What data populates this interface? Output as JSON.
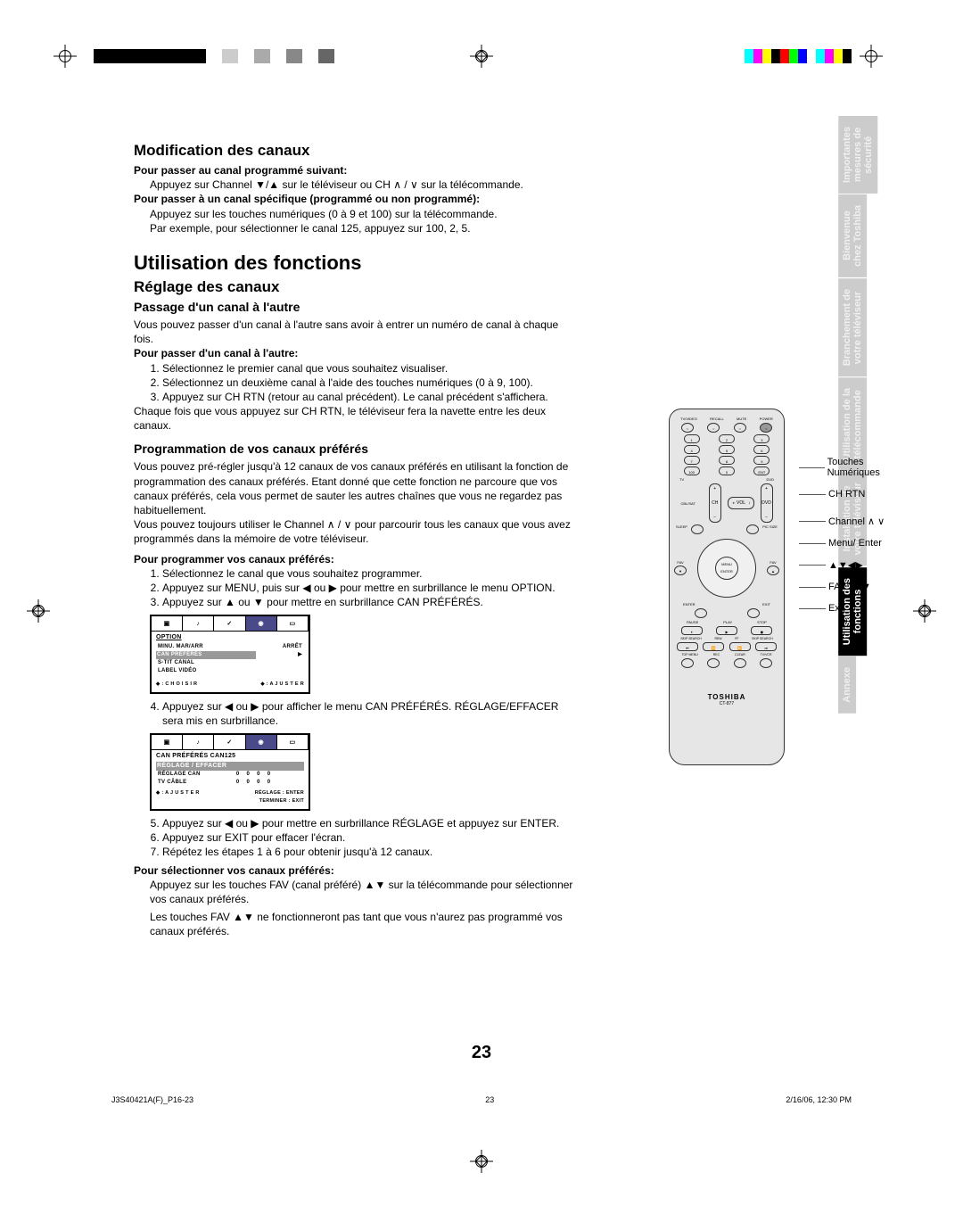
{
  "print": {
    "left_bars": [
      "#000",
      "#000",
      "#000",
      "#000",
      "#000",
      "#000",
      "#000",
      "#fff",
      "#ccc",
      "#fff",
      "#aaa",
      "#fff",
      "#888",
      "#fff",
      "#666"
    ],
    "right_bars": [
      "#00ffff",
      "#ff00ff",
      "#ffff00",
      "#000000",
      "#ff0000",
      "#00ff00",
      "#0000ff",
      "#ffffff",
      "#00ffff",
      "#ff00ff",
      "#ffff00",
      "#000000"
    ]
  },
  "h1_mod": "Modification des canaux",
  "mod": {
    "sub1_b": "Pour passer au canal programmé suivant:",
    "sub1_txt": "Appuyez sur Channel ▼/▲ sur le téléviseur ou CH ∧ / ∨  sur la télécommande.",
    "sub2_b": "Pour passer à un canal spécifique (programmé ou non programmé):",
    "sub2_txt": "Appuyez sur les touches numériques (0 à 9 et 100) sur la télécommande.",
    "sub2_ex": "Par exemple, pour sélectionner le canal 125, appuyez sur 100, 2, 5."
  },
  "h1_util": "Utilisation des fonctions",
  "h2_reg": "Réglage des canaux",
  "h3_pass": "Passage d'un canal à l'autre",
  "pass_intro": "Vous pouvez passer d'un canal à l'autre sans avoir à entrer un numéro de canal à chaque fois.",
  "pass_b": "Pour passer d'un canal à l'autre:",
  "pass_steps": [
    "Sélectionnez le premier canal que vous souhaitez visualiser.",
    "Sélectionnez un deuxième canal à l'aide des touches numériques (0 à 9, 100).",
    "Appuyez sur CH RTN (retour au canal précédent). Le canal précédent s'affichera."
  ],
  "pass_note": "Chaque fois que vous appuyez sur CH RTN, le téléviseur fera la navette entre les deux canaux.",
  "h3_prog": "Programmation de vos canaux préférés",
  "prog_p1": "Vous pouvez pré-régler jusqu'à 12 canaux de vos canaux préférés en utilisant la fonction de  programmation des canaux préférés. Etant donné que cette fonction ne parcoure que vos canaux préférés, cela vous permet de sauter les autres chaînes que vous ne regardez pas habituellement.",
  "prog_p2": "Vous pouvez toujours utiliser le Channel ∧ / ∨  pour parcourir tous les canaux que vous avez programmés dans la mémoire de votre téléviseur.",
  "prog_b": "Pour programmer vos canaux préférés:",
  "prog_steps_1": "Sélectionnez le canal que vous souhaitez programmer.",
  "prog_steps_2": "Appuyez sur MENU, puis sur ◀ ou ▶ pour mettre en surbrillance le menu OPTION.",
  "prog_steps_3": "Appuyez sur ▲ ou ▼ pour mettre en surbrillance CAN PRÉFÉRÉS.",
  "prog_steps_4": "Appuyez sur ◀ ou ▶ pour afficher le menu CAN PRÉFÉRÉS. RÉGLAGE/EFFACER sera mis en surbrillance.",
  "prog_steps_5": "Appuyez sur ◀ ou ▶ pour mettre en surbrillance RÉGLAGE et appuyez sur ENTER.",
  "prog_steps_6": "Appuyez sur EXIT pour effacer l'écran.",
  "prog_steps_7": "Répétez les étapes 1 à 6 pour obtenir jusqu'à 12 canaux.",
  "sel_b": "Pour sélectionner vos canaux préférés:",
  "sel_p1": "Appuyez sur les touches FAV (canal préféré) ▲▼ sur la télécommande pour sélectionner vos canaux préférés.",
  "sel_p2": "Les touches FAV ▲▼ ne fonctionneront pas tant que vous n'aurez pas programmé vos canaux préférés.",
  "osd1": {
    "title": "OPTION",
    "rows": [
      [
        "MINU. MAR/ARR",
        "ARRÊT"
      ],
      [
        "CAN PRÉFÉRÉS",
        "▶"
      ],
      [
        "S-TIT CANAL",
        ""
      ],
      [
        "LABEL VIDÉO",
        ""
      ]
    ],
    "foot_l": "◆ : C H O I S I R",
    "foot_r": "◆ : A J U S T E R"
  },
  "osd2": {
    "title": "CAN PRÉFÉRÉS      CAN125",
    "hl": "RÉGLAGE / EFFACER",
    "r1": "RÉGLAGE CAN",
    "r2": "TV CÂBLE",
    "cells": [
      "0",
      "0",
      "0",
      "0"
    ],
    "foot_l": "◆ : A J U S T E R",
    "foot_r1": "RÉGLAGE : ENTER",
    "foot_r2": "TERMINER : EXIT"
  },
  "callouts": {
    "c1": "Touches Numériques",
    "c2": "CH RTN",
    "c3": "Channel ∧ ∨",
    "c4": "Menu/ Enter",
    "c5": "▲▼◀▶",
    "c6": "FAV ▲ ▼",
    "c7": "Exit"
  },
  "remote": {
    "top": [
      "TV/VIDEO",
      "RECALL",
      "MUTE",
      "POWER"
    ],
    "nums": [
      [
        "1",
        "2",
        "3"
      ],
      [
        "4",
        "5",
        "6"
      ],
      [
        "7",
        "8",
        "9"
      ],
      [
        "100",
        "0",
        "ENT"
      ]
    ],
    "row_lbl": [
      "-/M",
      "",
      "CH RTN"
    ],
    "left_lbl": "TV",
    "right_lbl": "DVD",
    "crl": "CBL/SAT",
    "ch": "CH",
    "vol": "VOL",
    "sleep": "SLEEP",
    "pic": "PIC SIZE",
    "fav": "FAV",
    "menu": "MENU",
    "enter": "ENTER",
    "exit": "EXIT",
    "play_row": [
      "PAUSE",
      "PLAY",
      "STOP"
    ],
    "bot_row": [
      "SKIP SEARCH",
      "REW",
      "FF",
      "SKIP SEARCH"
    ],
    "bot2": [
      "TOP MENU",
      "REC",
      "CLEAR",
      "TV/VCR"
    ],
    "brand": "TOSHIBA",
    "model": "CT-877"
  },
  "tabs": [
    {
      "l1": "Importantes",
      "l2": "mesures de",
      "l3": "sécurité",
      "active": false
    },
    {
      "l1": "Bienvenue",
      "l2": "chez Toshiba",
      "l3": "",
      "active": false
    },
    {
      "l1": "Branchement de",
      "l2": "votre téléviseur",
      "l3": "",
      "active": false
    },
    {
      "l1": "Utilisation de la",
      "l2": "télécommande",
      "l3": "",
      "active": false
    },
    {
      "l1": "Installation de",
      "l2": "votre téléviseur",
      "l3": "",
      "active": false
    },
    {
      "l1": "Utilisation des",
      "l2": "fonctions",
      "l3": "",
      "active": true
    },
    {
      "l1": "Annexe",
      "l2": "",
      "l3": "",
      "active": false
    }
  ],
  "page_num": "23",
  "footer": {
    "file": "J3S40421A(F)_P16-23",
    "pg": "23",
    "date": "2/16/06, 12:30 PM"
  }
}
